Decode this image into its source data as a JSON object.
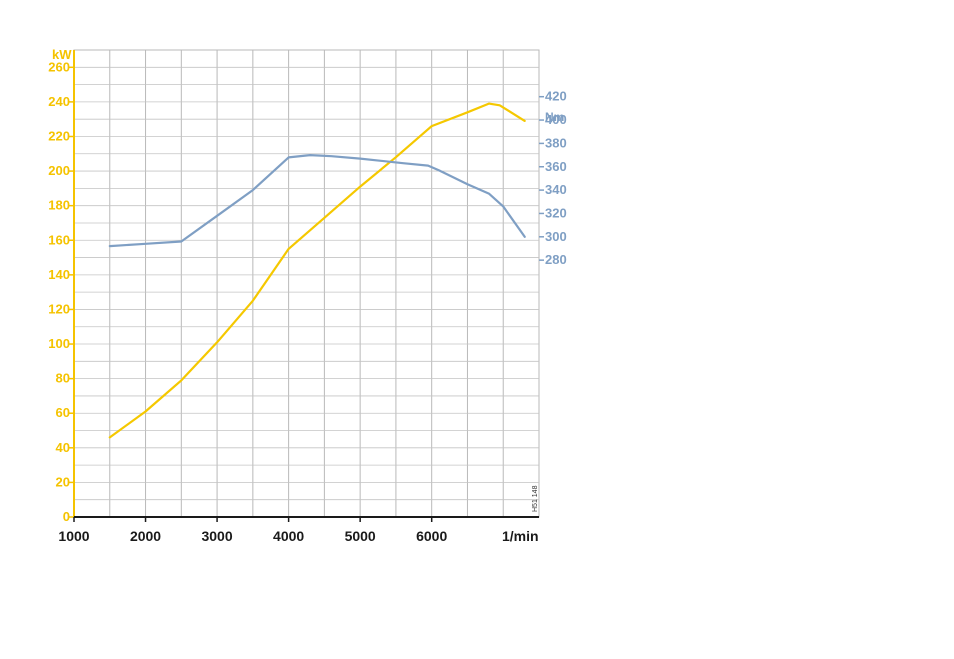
{
  "chart_data": {
    "type": "line",
    "x_ticks": [
      "1000",
      "2000",
      "3000",
      "4000",
      "5000",
      "6000"
    ],
    "x_unit_label": "1/min",
    "xlim": [
      1000,
      7500
    ],
    "left_axis": {
      "unit_label": "kW",
      "ylim": [
        0,
        270
      ],
      "ticks": [
        "0",
        "20",
        "40",
        "60",
        "80",
        "100",
        "120",
        "140",
        "160",
        "180",
        "200",
        "220",
        "240",
        "260"
      ]
    },
    "right_axis": {
      "unit_label": "Nm",
      "ylim": [
        60,
        460
      ],
      "ticks": [
        "280",
        "300",
        "320",
        "340",
        "360",
        "380",
        "400",
        "420"
      ]
    },
    "series": [
      {
        "axis": "left",
        "color": "#f5c800",
        "points": [
          [
            1500,
            46
          ],
          [
            2000,
            61
          ],
          [
            2500,
            79
          ],
          [
            3000,
            101
          ],
          [
            3500,
            125
          ],
          [
            4000,
            155
          ],
          [
            4500,
            173
          ],
          [
            5000,
            191
          ],
          [
            5500,
            208
          ],
          [
            6000,
            226
          ],
          [
            6500,
            234
          ],
          [
            6800,
            239
          ],
          [
            6950,
            238
          ],
          [
            7300,
            229
          ]
        ]
      },
      {
        "axis": "right",
        "color": "#7f9fc4",
        "points": [
          [
            1500,
            292
          ],
          [
            2000,
            294
          ],
          [
            2500,
            296
          ],
          [
            3000,
            318
          ],
          [
            3500,
            340
          ],
          [
            4000,
            368
          ],
          [
            4300,
            370
          ],
          [
            4600,
            369
          ],
          [
            5000,
            367
          ],
          [
            5600,
            363
          ],
          [
            5950,
            361
          ],
          [
            6100,
            357
          ],
          [
            6500,
            345
          ],
          [
            6800,
            337
          ],
          [
            7000,
            326
          ],
          [
            7300,
            300
          ]
        ]
      }
    ],
    "grid": true,
    "side_code": "H51 148"
  }
}
